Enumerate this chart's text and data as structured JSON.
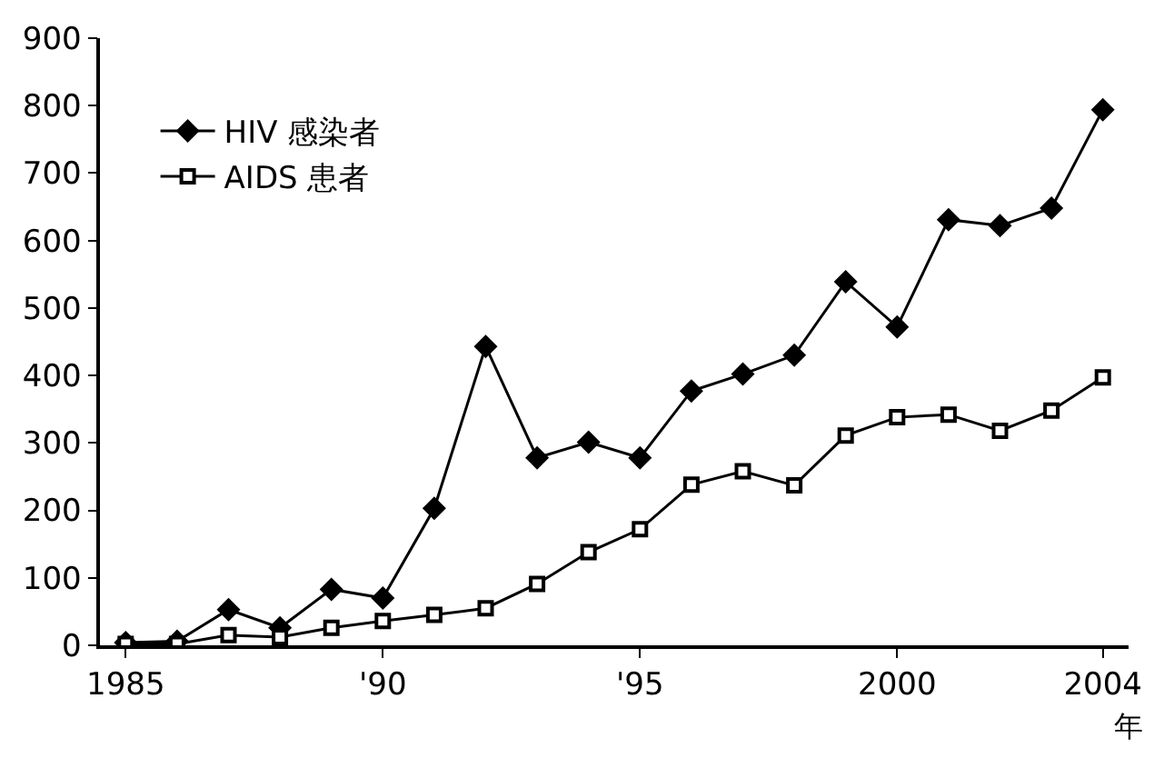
{
  "chart_data": {
    "type": "line",
    "xlabel": "年",
    "x": [
      1985,
      1986,
      1987,
      1988,
      1989,
      1990,
      1991,
      1992,
      1993,
      1994,
      1995,
      1996,
      1997,
      1998,
      1999,
      2000,
      2001,
      2002,
      2003,
      2004
    ],
    "series": [
      {
        "name": "HIV 感染者",
        "color": "#000000",
        "marker": "diamond",
        "values": [
          4,
          6,
          53,
          26,
          83,
          70,
          203,
          443,
          278,
          301,
          278,
          377,
          402,
          430,
          539,
          472,
          631,
          622,
          648,
          794
        ]
      },
      {
        "name": "AIDS 患者",
        "color": "#000000",
        "marker": "square",
        "values": [
          2,
          2,
          15,
          12,
          26,
          36,
          45,
          55,
          91,
          138,
          172,
          238,
          258,
          237,
          311,
          338,
          342,
          318,
          348,
          397
        ]
      }
    ],
    "xlim": [
      1984.5,
      2004.5
    ],
    "xticks": [
      1985,
      {
        "value": 1990,
        "label": "'90"
      },
      {
        "value": 1995,
        "label": "'95"
      },
      2000,
      2004
    ],
    "ylim": [
      0,
      900
    ],
    "yticks": [
      0,
      100,
      200,
      300,
      400,
      500,
      600,
      700,
      800,
      900
    ],
    "legend": "top left",
    "line_style": "solid"
  }
}
